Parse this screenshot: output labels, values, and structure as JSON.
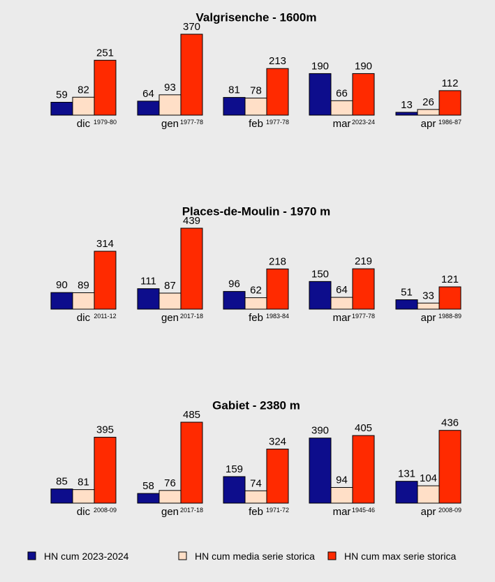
{
  "colors": {
    "background": "#ebebeb",
    "current": "#0d0d8c",
    "mean": "#ffdfc7",
    "max": "#ff2a00",
    "stroke": "#000000"
  },
  "chart_data": [
    {
      "type": "bar",
      "title": "Valgrisenche - 1600m",
      "categories": [
        "dic",
        "gen",
        "feb",
        "mar",
        "apr"
      ],
      "max_years": [
        "1979-80",
        "1977-78",
        "1977-78",
        "2023-24",
        "1986-87"
      ],
      "series": [
        {
          "name": "HN cum 2023-2024",
          "values": [
            59,
            64,
            81,
            190,
            13
          ]
        },
        {
          "name": "HN cum media serie storica",
          "values": [
            82,
            93,
            78,
            66,
            26
          ]
        },
        {
          "name": "HN cum max serie storica",
          "values": [
            251,
            370,
            213,
            190,
            112
          ]
        }
      ],
      "ylim": [
        0,
        370
      ],
      "grid": false
    },
    {
      "type": "bar",
      "title": "Places-de-Moulin - 1970 m",
      "categories": [
        "dic",
        "gen",
        "feb",
        "mar",
        "apr"
      ],
      "max_years": [
        "2011-12",
        "2017-18",
        "1983-84",
        "1977-78",
        "1988-89"
      ],
      "series": [
        {
          "name": "HN cum 2023-2024",
          "values": [
            90,
            111,
            96,
            150,
            51
          ]
        },
        {
          "name": "HN cum media serie storica",
          "values": [
            89,
            87,
            62,
            64,
            33
          ]
        },
        {
          "name": "HN cum max serie storica",
          "values": [
            314,
            439,
            218,
            219,
            121
          ]
        }
      ],
      "ylim": [
        0,
        439
      ],
      "grid": false
    },
    {
      "type": "bar",
      "title": "Gabiet - 2380 m",
      "categories": [
        "dic",
        "gen",
        "feb",
        "mar",
        "apr"
      ],
      "max_years": [
        "2008-09",
        "2017-18",
        "1971-72",
        "1945-46",
        "2008-09"
      ],
      "series": [
        {
          "name": "HN cum 2023-2024",
          "values": [
            85,
            58,
            159,
            390,
            131
          ]
        },
        {
          "name": "HN cum media serie storica",
          "values": [
            81,
            76,
            74,
            94,
            104
          ]
        },
        {
          "name": "HN cum max serie storica",
          "values": [
            395,
            485,
            324,
            405,
            436
          ]
        }
      ],
      "ylim": [
        0,
        485
      ],
      "grid": false
    }
  ],
  "legend": {
    "position": "bottom",
    "items": [
      {
        "label": "HN cum 2023-2024",
        "color_key": "current"
      },
      {
        "label": "HN cum media serie storica",
        "color_key": "mean"
      },
      {
        "label": "HN cum max serie storica",
        "color_key": "max"
      }
    ]
  }
}
